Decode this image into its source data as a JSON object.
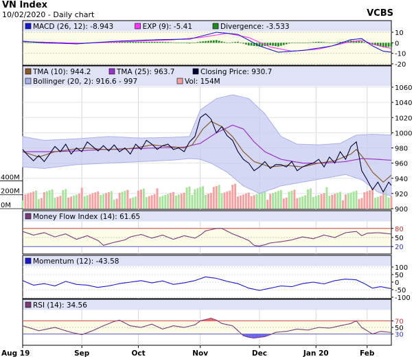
{
  "header": {
    "title": "VN Index",
    "subtitle": "10/02/2020 - Daily chart",
    "brand": "VCBS"
  },
  "x_axis": {
    "labels": [
      "Aug 19",
      "Sep",
      "Oct",
      "Nov",
      "Dec",
      "Jan 20",
      "Feb"
    ],
    "label_index": [
      0,
      22,
      43,
      66,
      88,
      109,
      128
    ]
  },
  "chart_data": [
    {
      "type": "bar",
      "title": "MACD (26, 12): -8.943",
      "legend": [
        {
          "label": "MACD (26, 12): -8.943",
          "color": "#1a1acc"
        },
        {
          "label": "EXP (9): -5.41",
          "color": "#ff33ff"
        },
        {
          "label": "Divergence: -3.533",
          "color": "#1f8a1f"
        }
      ],
      "ylim": [
        -20,
        10
      ],
      "y_ticks": [
        "10",
        "0",
        "-10",
        "-20"
      ],
      "y_tick_values": [
        10,
        0,
        -10,
        -20
      ],
      "macd_anchors": [
        [
          0,
          1.5
        ],
        [
          8,
          0
        ],
        [
          20,
          -1
        ],
        [
          35,
          1.5
        ],
        [
          50,
          3
        ],
        [
          62,
          3.5
        ],
        [
          72,
          10
        ],
        [
          80,
          8
        ],
        [
          88,
          -3
        ],
        [
          95,
          -9
        ],
        [
          105,
          -7
        ],
        [
          115,
          -3
        ],
        [
          122,
          3
        ],
        [
          126,
          4
        ],
        [
          130,
          -3
        ],
        [
          134,
          -8
        ],
        [
          137,
          -9
        ]
      ],
      "signal_anchors": [
        [
          0,
          1
        ],
        [
          10,
          0.5
        ],
        [
          22,
          -0.5
        ],
        [
          38,
          1
        ],
        [
          54,
          2.5
        ],
        [
          66,
          5
        ],
        [
          76,
          9
        ],
        [
          84,
          5
        ],
        [
          92,
          -4
        ],
        [
          100,
          -8
        ],
        [
          110,
          -6
        ],
        [
          120,
          0
        ],
        [
          126,
          2.5
        ],
        [
          131,
          -2
        ],
        [
          137,
          -5.4
        ]
      ]
    },
    {
      "type": "line",
      "title": "VN Index price with TMA, Bollinger bands and volume",
      "legend": [
        {
          "label": "TMA (10): 944.2",
          "color": "#8b5a2b"
        },
        {
          "label": "TMA (25): 963.7",
          "color": "#9933cc"
        },
        {
          "label": "Closing Price: 930.7",
          "color": "#000033"
        },
        {
          "label": "Bollinger (20, 2): 916.6 - 997",
          "color": "#aab0e8"
        },
        {
          "label": "Vol: 154M",
          "color": "#f4a0a0"
        }
      ],
      "ylim": [
        900,
        1060
      ],
      "y_ticks": [
        "1060",
        "1040",
        "1020",
        "1000",
        "980",
        "960",
        "940",
        "920",
        "900"
      ],
      "y_tick_values": [
        1060,
        1040,
        1020,
        1000,
        980,
        960,
        940,
        920,
        900
      ],
      "volume_ticks": [
        "400M",
        "200M",
        "0M"
      ],
      "volume_tick_values": [
        400,
        200,
        0
      ],
      "volume_max": 600,
      "volume_latest": 154,
      "close_anchors": [
        [
          0,
          978
        ],
        [
          2,
          970
        ],
        [
          4,
          963
        ],
        [
          6,
          970
        ],
        [
          8,
          962
        ],
        [
          10,
          972
        ],
        [
          12,
          982
        ],
        [
          14,
          975
        ],
        [
          16,
          985
        ],
        [
          18,
          972
        ],
        [
          20,
          980
        ],
        [
          22,
          975
        ],
        [
          24,
          988
        ],
        [
          26,
          982
        ],
        [
          28,
          976
        ],
        [
          30,
          983
        ],
        [
          32,
          976
        ],
        [
          34,
          984
        ],
        [
          36,
          975
        ],
        [
          38,
          980
        ],
        [
          40,
          972
        ],
        [
          42,
          985
        ],
        [
          44,
          978
        ],
        [
          46,
          990
        ],
        [
          48,
          985
        ],
        [
          50,
          978
        ],
        [
          52,
          983
        ],
        [
          54,
          985
        ],
        [
          56,
          978
        ],
        [
          58,
          980
        ],
        [
          60,
          975
        ],
        [
          62,
          988
        ],
        [
          64,
          995
        ],
        [
          66,
          1020
        ],
        [
          68,
          1025
        ],
        [
          70,
          1018
        ],
        [
          72,
          1000
        ],
        [
          74,
          1008
        ],
        [
          76,
          996
        ],
        [
          78,
          990
        ],
        [
          80,
          975
        ],
        [
          82,
          965
        ],
        [
          84,
          960
        ],
        [
          86,
          950
        ],
        [
          88,
          955
        ],
        [
          90,
          962
        ],
        [
          92,
          953
        ],
        [
          94,
          958
        ],
        [
          96,
          958
        ],
        [
          98,
          955
        ],
        [
          100,
          962
        ],
        [
          102,
          950
        ],
        [
          104,
          955
        ],
        [
          106,
          958
        ],
        [
          108,
          960
        ],
        [
          110,
          965
        ],
        [
          112,
          955
        ],
        [
          114,
          968
        ],
        [
          116,
          960
        ],
        [
          118,
          975
        ],
        [
          120,
          965
        ],
        [
          122,
          982
        ],
        [
          124,
          988
        ],
        [
          126,
          950
        ],
        [
          128,
          938
        ],
        [
          130,
          925
        ],
        [
          132,
          935
        ],
        [
          134,
          922
        ],
        [
          136,
          935
        ],
        [
          137,
          930.7
        ]
      ],
      "tma10_anchors": [
        [
          0,
          975
        ],
        [
          6,
          968
        ],
        [
          12,
          975
        ],
        [
          18,
          978
        ],
        [
          24,
          980
        ],
        [
          30,
          978
        ],
        [
          36,
          978
        ],
        [
          42,
          980
        ],
        [
          48,
          984
        ],
        [
          54,
          982
        ],
        [
          60,
          980
        ],
        [
          63,
          984
        ],
        [
          67,
          1005
        ],
        [
          70,
          1015
        ],
        [
          74,
          1008
        ],
        [
          78,
          995
        ],
        [
          82,
          975
        ],
        [
          86,
          962
        ],
        [
          92,
          955
        ],
        [
          98,
          957
        ],
        [
          104,
          955
        ],
        [
          110,
          960
        ],
        [
          116,
          963
        ],
        [
          122,
          972
        ],
        [
          124,
          978
        ],
        [
          127,
          965
        ],
        [
          130,
          948
        ],
        [
          134,
          935
        ],
        [
          137,
          944.2
        ]
      ],
      "tma25_anchors": [
        [
          0,
          975
        ],
        [
          10,
          975
        ],
        [
          20,
          976
        ],
        [
          30,
          978
        ],
        [
          40,
          979
        ],
        [
          50,
          980
        ],
        [
          60,
          981
        ],
        [
          66,
          986
        ],
        [
          72,
          1000
        ],
        [
          78,
          1010
        ],
        [
          82,
          1005
        ],
        [
          86,
          988
        ],
        [
          90,
          975
        ],
        [
          96,
          965
        ],
        [
          104,
          960
        ],
        [
          112,
          960
        ],
        [
          120,
          962
        ],
        [
          126,
          966
        ],
        [
          132,
          965
        ],
        [
          137,
          963.7
        ]
      ],
      "boll_upper_anchors": [
        [
          0,
          995
        ],
        [
          8,
          990
        ],
        [
          20,
          992
        ],
        [
          32,
          995
        ],
        [
          44,
          993
        ],
        [
          56,
          994
        ],
        [
          62,
          995
        ],
        [
          66,
          1030
        ],
        [
          72,
          1045
        ],
        [
          78,
          1050
        ],
        [
          84,
          1045
        ],
        [
          90,
          1025
        ],
        [
          96,
          995
        ],
        [
          102,
          985
        ],
        [
          110,
          984
        ],
        [
          118,
          986
        ],
        [
          124,
          997
        ],
        [
          130,
          998
        ],
        [
          137,
          997
        ]
      ],
      "boll_lower_anchors": [
        [
          0,
          955
        ],
        [
          8,
          953
        ],
        [
          20,
          958
        ],
        [
          32,
          960
        ],
        [
          44,
          962
        ],
        [
          56,
          964
        ],
        [
          62,
          966
        ],
        [
          66,
          965
        ],
        [
          70,
          960
        ],
        [
          76,
          948
        ],
        [
          82,
          930
        ],
        [
          88,
          920
        ],
        [
          96,
          930
        ],
        [
          104,
          935
        ],
        [
          112,
          940
        ],
        [
          120,
          945
        ],
        [
          126,
          938
        ],
        [
          132,
          922
        ],
        [
          137,
          916.6
        ]
      ]
    },
    {
      "type": "line",
      "title": "Money Flow Index (14): 61.65",
      "legend": [
        {
          "label": "Money Flow Index (14): 61.65",
          "color": "#7a3b7a"
        }
      ],
      "ylim": [
        0,
        100
      ],
      "y_ticks": [
        "80",
        "50",
        "20"
      ],
      "y_tick_values": [
        80,
        50,
        20
      ],
      "anchors": [
        [
          0,
          70
        ],
        [
          4,
          58
        ],
        [
          8,
          66
        ],
        [
          12,
          52
        ],
        [
          16,
          62
        ],
        [
          20,
          44
        ],
        [
          24,
          56
        ],
        [
          28,
          40
        ],
        [
          30,
          24
        ],
        [
          34,
          34
        ],
        [
          38,
          42
        ],
        [
          40,
          52
        ],
        [
          44,
          60
        ],
        [
          48,
          48
        ],
        [
          52,
          58
        ],
        [
          56,
          44
        ],
        [
          60,
          56
        ],
        [
          64,
          48
        ],
        [
          66,
          58
        ],
        [
          68,
          72
        ],
        [
          72,
          80
        ],
        [
          74,
          80
        ],
        [
          78,
          62
        ],
        [
          82,
          48
        ],
        [
          84,
          40
        ],
        [
          86,
          24
        ],
        [
          88,
          22
        ],
        [
          90,
          26
        ],
        [
          92,
          32
        ],
        [
          96,
          36
        ],
        [
          100,
          42
        ],
        [
          104,
          52
        ],
        [
          108,
          46
        ],
        [
          112,
          58
        ],
        [
          116,
          50
        ],
        [
          120,
          66
        ],
        [
          124,
          70
        ],
        [
          126,
          56
        ],
        [
          128,
          64
        ],
        [
          132,
          66
        ],
        [
          137,
          61.65
        ]
      ]
    },
    {
      "type": "line",
      "title": "Momentum (12): -43.58",
      "legend": [
        {
          "label": "Momentum (12): -43.58",
          "color": "#1a1acc"
        }
      ],
      "ylim": [
        -100,
        100
      ],
      "y_ticks": [
        "100",
        "50",
        "0",
        "-50",
        "-100"
      ],
      "y_tick_values": [
        100,
        50,
        0,
        -50,
        -100
      ],
      "anchors": [
        [
          0,
          10
        ],
        [
          4,
          -20
        ],
        [
          8,
          -10
        ],
        [
          12,
          -25
        ],
        [
          16,
          5
        ],
        [
          20,
          -15
        ],
        [
          24,
          -20
        ],
        [
          28,
          -35
        ],
        [
          32,
          -25
        ],
        [
          36,
          -10
        ],
        [
          40,
          0
        ],
        [
          44,
          10
        ],
        [
          48,
          -5
        ],
        [
          52,
          8
        ],
        [
          56,
          -15
        ],
        [
          60,
          -5
        ],
        [
          64,
          10
        ],
        [
          68,
          35
        ],
        [
          72,
          25
        ],
        [
          76,
          5
        ],
        [
          80,
          -10
        ],
        [
          84,
          -40
        ],
        [
          88,
          -55
        ],
        [
          92,
          -40
        ],
        [
          96,
          -25
        ],
        [
          100,
          -30
        ],
        [
          104,
          -10
        ],
        [
          108,
          0
        ],
        [
          112,
          -12
        ],
        [
          116,
          10
        ],
        [
          120,
          20
        ],
        [
          124,
          15
        ],
        [
          127,
          -10
        ],
        [
          130,
          -40
        ],
        [
          133,
          -30
        ],
        [
          137,
          -43.58
        ]
      ]
    },
    {
      "type": "line",
      "title": "RSI (14): 34.56",
      "legend": [
        {
          "label": "RSI (14): 34.56",
          "color": "#7a3b7a"
        }
      ],
      "ylim": [
        0,
        100
      ],
      "y_ticks": [
        "70",
        "50",
        "30"
      ],
      "y_tick_values": [
        70,
        50,
        30
      ],
      "anchors": [
        [
          0,
          55
        ],
        [
          6,
          40
        ],
        [
          12,
          50
        ],
        [
          18,
          35
        ],
        [
          22,
          28
        ],
        [
          26,
          40
        ],
        [
          30,
          55
        ],
        [
          34,
          68
        ],
        [
          36,
          72
        ],
        [
          40,
          55
        ],
        [
          44,
          50
        ],
        [
          48,
          60
        ],
        [
          52,
          45
        ],
        [
          56,
          55
        ],
        [
          60,
          50
        ],
        [
          64,
          58
        ],
        [
          66,
          70
        ],
        [
          68,
          74
        ],
        [
          70,
          78
        ],
        [
          72,
          72
        ],
        [
          74,
          62
        ],
        [
          78,
          55
        ],
        [
          80,
          40
        ],
        [
          82,
          25
        ],
        [
          84,
          20
        ],
        [
          86,
          18
        ],
        [
          88,
          20
        ],
        [
          90,
          22
        ],
        [
          92,
          28
        ],
        [
          94,
          35
        ],
        [
          98,
          38
        ],
        [
          102,
          45
        ],
        [
          106,
          42
        ],
        [
          110,
          50
        ],
        [
          114,
          48
        ],
        [
          118,
          55
        ],
        [
          122,
          62
        ],
        [
          124,
          70
        ],
        [
          126,
          50
        ],
        [
          128,
          40
        ],
        [
          130,
          30
        ],
        [
          133,
          38
        ],
        [
          137,
          34.56
        ]
      ]
    }
  ]
}
